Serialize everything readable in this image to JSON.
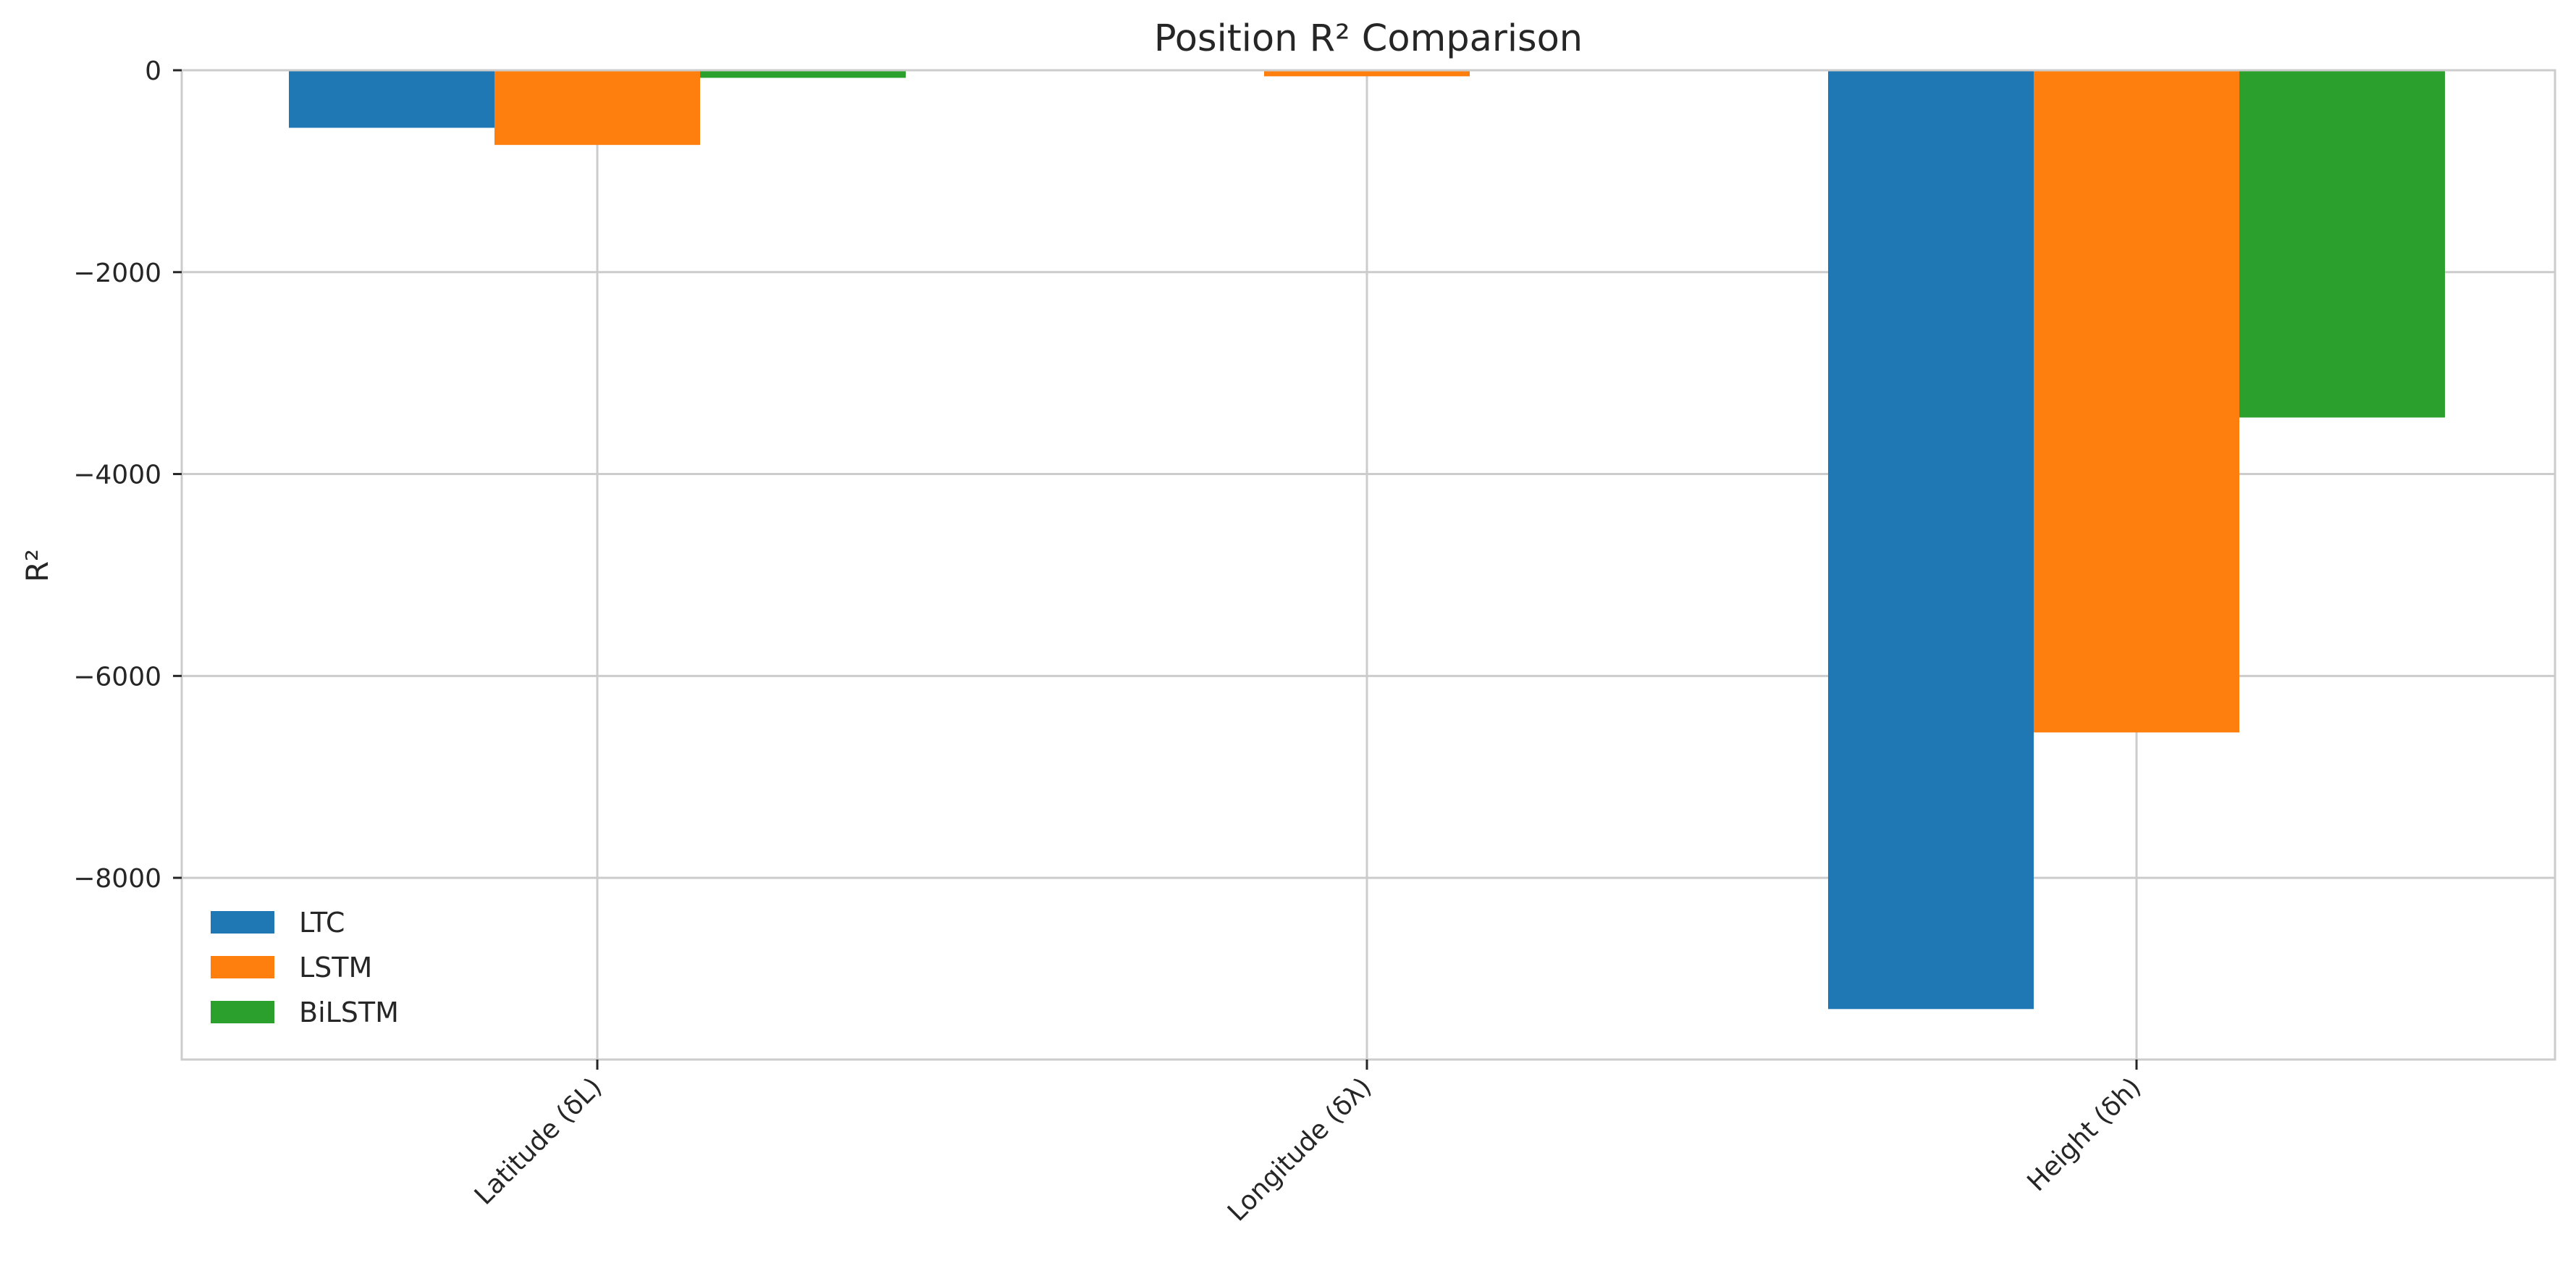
{
  "chart_data": {
    "type": "bar",
    "title": "Position R² Comparison",
    "xlabel": "",
    "ylabel": "R²",
    "categories": [
      "Latitude (δL)",
      "Longitude (δλ)",
      "Height (δh)"
    ],
    "series": [
      {
        "name": "LTC",
        "color": "#1f77b4",
        "values": [
          -570,
          -5,
          -9300
        ]
      },
      {
        "name": "LSTM",
        "color": "#ff7f0e",
        "values": [
          -740,
          -60,
          -6560
        ]
      },
      {
        "name": "BiLSTM",
        "color": "#2ca02c",
        "values": [
          -75,
          -3,
          -3440
        ]
      }
    ],
    "ylim": [
      -9800,
      0
    ],
    "yticks": [
      0,
      -2000,
      -4000,
      -6000,
      -8000
    ],
    "ytick_labels": [
      "0",
      "−2000",
      "−4000",
      "−6000",
      "−8000"
    ],
    "grid": true,
    "legend_position": "lower-left"
  }
}
